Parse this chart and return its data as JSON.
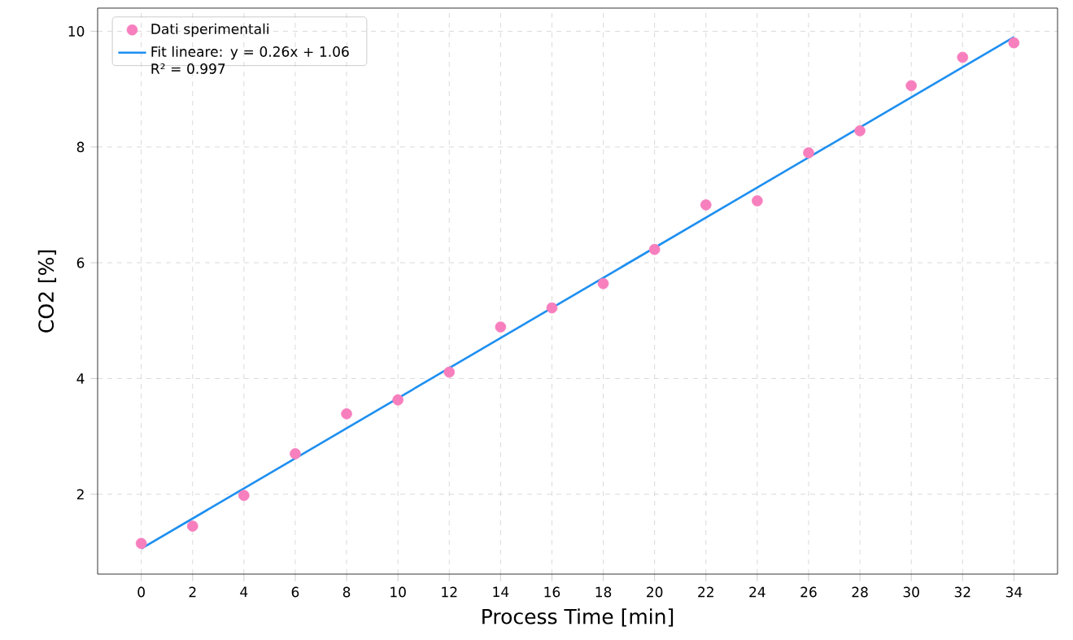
{
  "chart_data": {
    "type": "scatter",
    "xlabel": "Process Time [min]",
    "ylabel": "CO2 [%]",
    "x": [
      0,
      2,
      4,
      6,
      8,
      10,
      12,
      14,
      16,
      18,
      20,
      22,
      24,
      26,
      28,
      30,
      32,
      34
    ],
    "series": [
      {
        "name": "Dati sperimentali",
        "marker": "circle",
        "color": "#f77fbe",
        "values": [
          1.15,
          1.45,
          1.98,
          2.7,
          3.39,
          3.63,
          4.11,
          4.89,
          5.22,
          5.64,
          6.23,
          7.0,
          7.07,
          7.9,
          8.28,
          9.06,
          9.55,
          9.8
        ]
      },
      {
        "name": "Fit lineare: y = 0.26x + 1.06 R² = 0.997",
        "type": "line",
        "marker": "none",
        "color": "#1e8ff0",
        "x": [
          0,
          34
        ],
        "values": [
          1.06,
          9.9
        ]
      }
    ],
    "xlim": [
      -1.7,
      35.7
    ],
    "ylim": [
      0.62,
      10.4
    ],
    "xticks": [
      0,
      2,
      4,
      6,
      8,
      10,
      12,
      14,
      16,
      18,
      20,
      22,
      24,
      26,
      28,
      30,
      32,
      34
    ],
    "yticks": [
      2,
      4,
      6,
      8,
      10
    ],
    "grid": true,
    "legend": "top left"
  }
}
